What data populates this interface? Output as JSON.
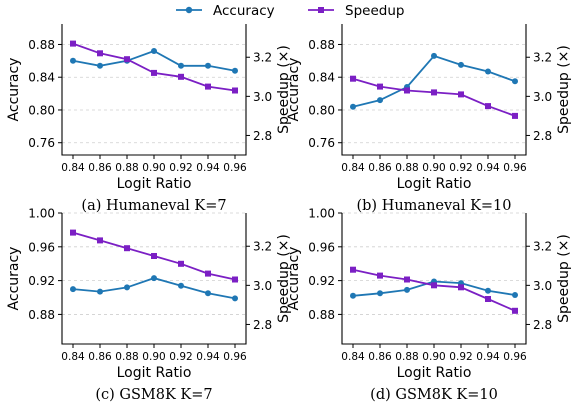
{
  "legend": [
    {
      "name": "Accuracy",
      "color": "#1f77b4",
      "marker": "circle"
    },
    {
      "name": "Speedup",
      "color": "#7b1fc4",
      "marker": "square"
    }
  ],
  "chart_data": [
    {
      "type": "line",
      "title": "(a) Humaneval K=7",
      "xlabel": "Logit Ratio",
      "ylabel": "Accuracy",
      "y2label": "Speedup (×)",
      "x": [
        0.84,
        0.86,
        0.88,
        0.9,
        0.92,
        0.94,
        0.96
      ],
      "xticks": [
        "0.84",
        "0.86",
        "0.88",
        "0.90",
        "0.92",
        "0.94",
        "0.96"
      ],
      "ylim": [
        0.745,
        0.905
      ],
      "yticks": [
        "0.76",
        "0.80",
        "0.84",
        "0.88"
      ],
      "y2lim": [
        2.7,
        3.37
      ],
      "y2ticks": [
        "2.8",
        "3.0",
        "3.2"
      ],
      "grid": "y-dashed",
      "series": [
        {
          "name": "Accuracy",
          "axis": "left",
          "color": "#1f77b4",
          "marker": "circle",
          "values": [
            0.86,
            0.854,
            0.86,
            0.872,
            0.854,
            0.854,
            0.848
          ]
        },
        {
          "name": "Speedup",
          "axis": "right",
          "color": "#7b1fc4",
          "marker": "square",
          "values": [
            3.27,
            3.22,
            3.19,
            3.12,
            3.1,
            3.05,
            3.03
          ]
        }
      ]
    },
    {
      "type": "line",
      "title": "(b) Humaneval K=10",
      "xlabel": "Logit Ratio",
      "ylabel": "Accuracy",
      "y2label": "Speedup (×)",
      "x": [
        0.84,
        0.86,
        0.88,
        0.9,
        0.92,
        0.94,
        0.96
      ],
      "xticks": [
        "0.84",
        "0.86",
        "0.88",
        "0.90",
        "0.92",
        "0.94",
        "0.96"
      ],
      "ylim": [
        0.745,
        0.905
      ],
      "yticks": [
        "0.76",
        "0.80",
        "0.84",
        "0.88"
      ],
      "y2lim": [
        2.7,
        3.37
      ],
      "y2ticks": [
        "2.8",
        "3.0",
        "3.2"
      ],
      "grid": "y-dashed",
      "series": [
        {
          "name": "Accuracy",
          "axis": "left",
          "color": "#1f77b4",
          "marker": "circle",
          "values": [
            0.804,
            0.812,
            0.828,
            0.866,
            0.855,
            0.847,
            0.835
          ]
        },
        {
          "name": "Speedup",
          "axis": "right",
          "color": "#7b1fc4",
          "marker": "square",
          "values": [
            3.09,
            3.05,
            3.03,
            3.02,
            3.01,
            2.95,
            2.9
          ]
        }
      ]
    },
    {
      "type": "line",
      "title": "(c) GSM8K K=7",
      "xlabel": "Logit Ratio",
      "ylabel": "Accuracy",
      "y2label": "Speedup (×)",
      "x": [
        0.84,
        0.86,
        0.88,
        0.9,
        0.92,
        0.94,
        0.96
      ],
      "xticks": [
        "0.84",
        "0.86",
        "0.88",
        "0.90",
        "0.92",
        "0.94",
        "0.96"
      ],
      "ylim": [
        0.845,
        1.0
      ],
      "yticks": [
        "0.88",
        "0.92",
        "0.96",
        "1.00"
      ],
      "y2lim": [
        2.7,
        3.37
      ],
      "y2ticks": [
        "2.8",
        "3.0",
        "3.2"
      ],
      "grid": "y-dashed",
      "series": [
        {
          "name": "Accuracy",
          "axis": "left",
          "color": "#1f77b4",
          "marker": "circle",
          "values": [
            0.91,
            0.907,
            0.912,
            0.923,
            0.914,
            0.905,
            0.899
          ]
        },
        {
          "name": "Speedup",
          "axis": "right",
          "color": "#7b1fc4",
          "marker": "square",
          "values": [
            3.27,
            3.23,
            3.19,
            3.15,
            3.11,
            3.06,
            3.03
          ]
        }
      ]
    },
    {
      "type": "line",
      "title": "(d) GSM8K K=10",
      "xlabel": "Logit Ratio",
      "ylabel": "Accuracy",
      "y2label": "Speedup (×)",
      "x": [
        0.84,
        0.86,
        0.88,
        0.9,
        0.92,
        0.94,
        0.96
      ],
      "xticks": [
        "0.84",
        "0.86",
        "0.88",
        "0.90",
        "0.92",
        "0.94",
        "0.96"
      ],
      "ylim": [
        0.845,
        1.0
      ],
      "yticks": [
        "0.88",
        "0.92",
        "0.96",
        "1.00"
      ],
      "y2lim": [
        2.7,
        3.37
      ],
      "y2ticks": [
        "2.8",
        "3.0",
        "3.2"
      ],
      "grid": "y-dashed",
      "series": [
        {
          "name": "Accuracy",
          "axis": "left",
          "color": "#1f77b4",
          "marker": "circle",
          "values": [
            0.902,
            0.905,
            0.909,
            0.919,
            0.917,
            0.908,
            0.903
          ]
        },
        {
          "name": "Speedup",
          "axis": "right",
          "color": "#7b1fc4",
          "marker": "square",
          "values": [
            3.08,
            3.05,
            3.03,
            3.0,
            2.99,
            2.93,
            2.87
          ]
        }
      ]
    }
  ]
}
